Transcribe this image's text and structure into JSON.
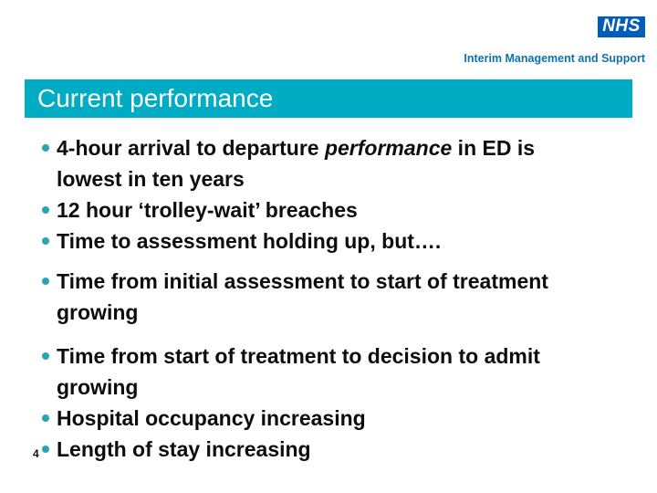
{
  "brand": {
    "logo_text": "NHS",
    "tagline": "Interim Management and Support"
  },
  "header": {
    "title": "Current performance"
  },
  "bullets": [
    {
      "pre": "4-hour arrival to departure ",
      "em": "performance",
      "post": " in ED is lowest in ten years"
    },
    {
      "text": "12 hour ‘trolley-wait’ breaches"
    },
    {
      "text": "Time to assessment holding up, but…."
    },
    {
      "text": "Time from initial assessment to start of treatment growing"
    },
    {
      "text": "Time from start of treatment to decision to admit growing"
    },
    {
      "text": "Hospital occupancy increasing"
    },
    {
      "text": "Length of stay increasing"
    }
  ],
  "footer": {
    "page_number": "4"
  },
  "colors": {
    "accent_teal": "#00ABC4",
    "bullet_teal": "#2BA4B6",
    "nhs_blue": "#005EB8",
    "tagline_blue": "#0E72AE",
    "text": "#0D0D0D"
  }
}
